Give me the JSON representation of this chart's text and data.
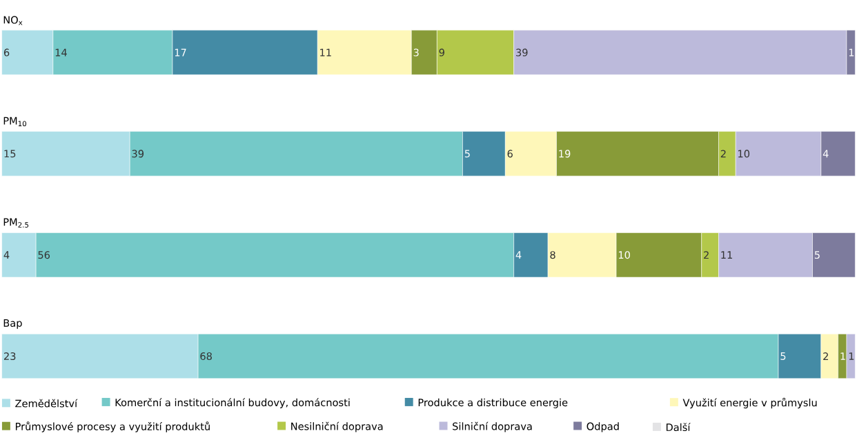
{
  "chart_data": {
    "type": "bar",
    "orientation": "horizontal",
    "stacked": true,
    "data_labels": true,
    "legend": "bottom",
    "tick_labels": "y",
    "categories": [
      "NO$_{x}$",
      "PM$_{10}$",
      "PM$_{2.5}$",
      "Bap"
    ],
    "series": [
      {
        "name": "Zemědělství",
        "color": "#addfe8",
        "values": [
          6,
          15,
          4,
          23
        ]
      },
      {
        "name": "Komerční a institucionální budovy, domácnosti",
        "color": "#74c9c8",
        "values": [
          14,
          39,
          56,
          68
        ]
      },
      {
        "name": "Produkce a distribuce energie",
        "color": "#448ba5",
        "values": [
          17,
          5,
          4,
          5
        ]
      },
      {
        "name": "Využití energie v průmyslu",
        "color": "#fef7b9",
        "values": [
          11,
          6,
          8,
          2
        ]
      },
      {
        "name": "Průmyslové procesy a využití produktů",
        "color": "#889b38",
        "values": [
          3,
          19,
          10,
          1
        ]
      },
      {
        "name": "Nesilniční doprava",
        "color": "#b3c84a",
        "values": [
          9,
          2,
          2,
          null
        ]
      },
      {
        "name": "Silniční doprava",
        "color": "#bcbadb",
        "values": [
          39,
          10,
          11,
          1
        ]
      },
      {
        "name": "Odpad",
        "color": "#7d7b9d",
        "values": [
          1,
          4,
          5,
          null
        ]
      },
      {
        "name": "Další",
        "color": "#e3e3e5",
        "values": [
          null,
          null,
          null,
          null
        ]
      }
    ]
  }
}
